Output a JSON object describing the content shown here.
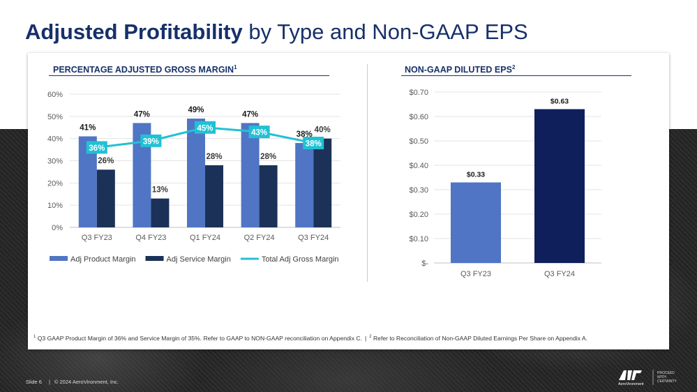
{
  "slide": {
    "title_bold": "Adjusted Profitability",
    "title_rest": " by Type and Non-GAAP EPS",
    "footnote_1_marker": "1",
    "footnote_1": "Q3 GAAP Product Margin of 36% and Service Margin of 35%. Refer to GAAP to NON-GAAP reconciliation on Appendix C.",
    "footnote_sep": "|",
    "footnote_2_marker": "2",
    "footnote_2": "Refer to Reconciliation of Non-GAAP Diluted Earnings Per Share on Appendix A.",
    "slide_number": "Slide 6",
    "copyright": "© 2024 AeroVironment, Inc.",
    "logo_text": "AeroVironment",
    "tagline_1": "PROCEED",
    "tagline_2": "WITH",
    "tagline_3": "CERTAINTY"
  },
  "colors": {
    "title": "#17306a",
    "product": "#4f75c4",
    "service": "#1b3158",
    "total": "#21c1d4",
    "eps_fy23": "#4f75c4",
    "eps_fy24": "#0f1f5c"
  },
  "chart_data": [
    {
      "type": "bar",
      "title": "PERCENTAGE ADJUSTED GROSS MARGIN",
      "title_sup": "1",
      "categories": [
        "Q3 FY23",
        "Q4 FY23",
        "Q1 FY24",
        "Q2 FY24",
        "Q3 FY24"
      ],
      "ylim": [
        0,
        60
      ],
      "yticks": [
        "0%",
        "10%",
        "20%",
        "30%",
        "40%",
        "50%",
        "60%"
      ],
      "series": [
        {
          "name": "Adj Product Margin",
          "kind": "bar",
          "values": [
            41,
            47,
            49,
            47,
            38
          ],
          "labels": [
            "41%",
            "47%",
            "49%",
            "47%",
            "38%"
          ]
        },
        {
          "name": "Adj Service Margin",
          "kind": "bar",
          "values": [
            26,
            13,
            28,
            28,
            40
          ],
          "labels": [
            "26%",
            "13%",
            "28%",
            "28%",
            "40%"
          ]
        },
        {
          "name": "Total Adj Gross Margin",
          "kind": "line",
          "values": [
            36,
            39,
            45,
            43,
            38
          ],
          "labels": [
            "36%",
            "39%",
            "45%",
            "43%",
            "38%"
          ]
        }
      ],
      "legend": "bottom"
    },
    {
      "type": "bar",
      "title": "NON-GAAP DILUTED EPS",
      "title_sup": "2",
      "categories": [
        "Q3 FY23",
        "Q3 FY24"
      ],
      "values": [
        0.33,
        0.63
      ],
      "labels": [
        "$0.33",
        "$0.63"
      ],
      "ylim": [
        0,
        0.7
      ],
      "yticks": [
        "$-",
        "$0.10",
        "$0.20",
        "$0.30",
        "$0.40",
        "$0.50",
        "$0.60",
        "$0.70"
      ]
    }
  ]
}
